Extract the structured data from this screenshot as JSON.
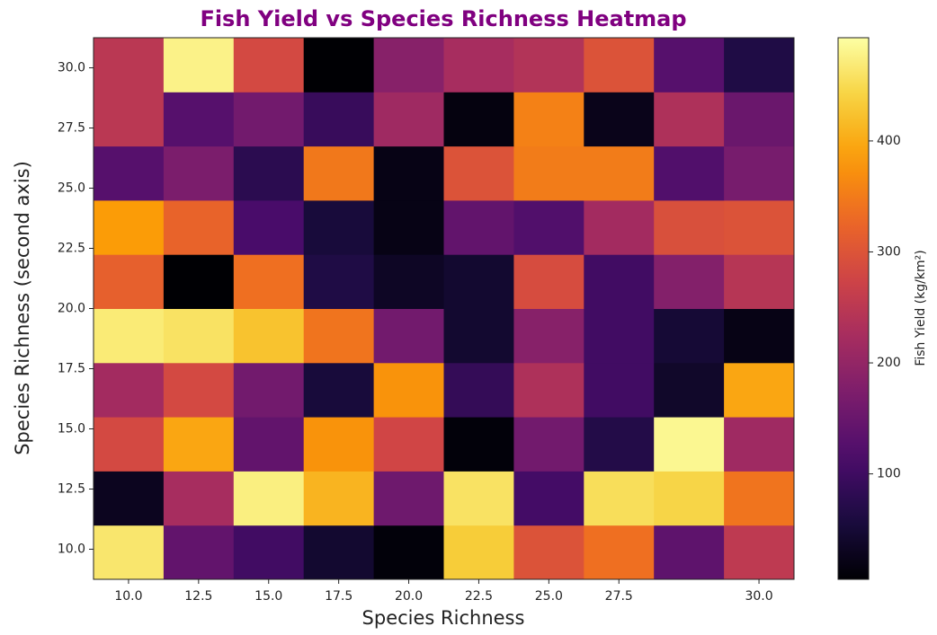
{
  "chart_data": {
    "type": "heatmap",
    "title": "Fish Yield vs Species Richness Heatmap",
    "title_color": "#800080",
    "xlabel": "Species Richness",
    "ylabel": "Species Richness (second axis)",
    "categories": [
      "10.0",
      "12.5",
      "15.0",
      "17.5",
      "20.0",
      "22.5",
      "25.0",
      "27.5",
      null,
      "30.0"
    ],
    "ylim": [
      8.75,
      31.25
    ],
    "yticks": [
      {
        "value": 10,
        "label": "10.0"
      },
      {
        "value": 12.5,
        "label": "12.5"
      },
      {
        "value": 15,
        "label": "15.0"
      },
      {
        "value": 17.5,
        "label": "17.5"
      },
      {
        "value": 20,
        "label": "20.0"
      },
      {
        "value": 22.5,
        "label": "22.5"
      },
      {
        "value": 25,
        "label": "25.0"
      },
      {
        "value": 27.5,
        "label": "27.5"
      },
      {
        "value": 30,
        "label": "30.0"
      }
    ],
    "values": [
      [
        464,
        142,
        103,
        44,
        10,
        435,
        298,
        337,
        137,
        254
      ],
      [
        29,
        225,
        474,
        410,
        156,
        459,
        107,
        454,
        444,
        342
      ],
      [
        283,
        396,
        142,
        376,
        278,
        10,
        161,
        68,
        483,
        215
      ],
      [
        220,
        283,
        161,
        54,
        376,
        88,
        234,
        103,
        39,
        396
      ],
      [
        469,
        459,
        425,
        342,
        161,
        44,
        186,
        103,
        49,
        20
      ],
      [
        317,
        5,
        337,
        64,
        34,
        44,
        288,
        103,
        181,
        244
      ],
      [
        386,
        322,
        112,
        54,
        20,
        142,
        122,
        220,
        293,
        298
      ],
      [
        127,
        171,
        78,
        347,
        20,
        298,
        351,
        351,
        122,
        166
      ],
      [
        249,
        127,
        161,
        93,
        215,
        15,
        356,
        25,
        234,
        151
      ],
      [
        249,
        478,
        283,
        5,
        186,
        225,
        239,
        298,
        127,
        64
      ]
    ],
    "colormap": "inferno",
    "clim": [
      5,
      493
    ],
    "colorbar_label": "Fish Yield (kg/km²)",
    "colorbar_ticks": [
      100,
      200,
      300,
      400
    ]
  }
}
